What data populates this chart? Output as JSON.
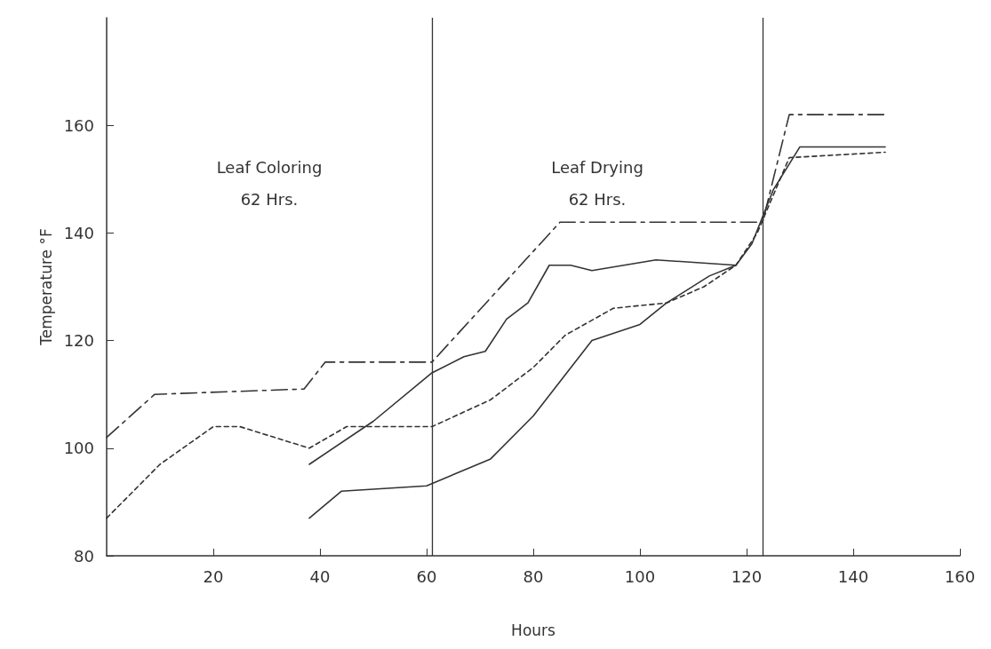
{
  "chart_data": {
    "type": "line",
    "xlabel": "Hours",
    "ylabel": "Temperature °F",
    "xlim": [
      0,
      160
    ],
    "xticks": [
      20,
      40,
      60,
      80,
      100,
      120,
      140,
      160
    ],
    "ylim": [
      80,
      180
    ],
    "yticks": [
      80,
      100,
      120,
      140,
      160
    ],
    "grid": false,
    "marker": "none",
    "ref_lines": [
      {
        "axis": "x",
        "value": 61
      },
      {
        "axis": "x",
        "value": 123
      }
    ],
    "annotations": [
      "Leaf Coloring\n62 Hrs.",
      "Leaf Drying\n62 Hrs."
    ],
    "series": [
      {
        "color": "#333333",
        "line_style": "dashed",
        "x": [
          0,
          9,
          37,
          41,
          61,
          85,
          123,
          128,
          146
        ],
        "values": [
          102,
          110,
          111,
          116,
          116,
          142,
          142,
          162,
          162
        ]
      },
      {
        "color": "#333333",
        "line_style": "dotted",
        "x": [
          0,
          10,
          20,
          25,
          38,
          45,
          61,
          72,
          80,
          86,
          95,
          105,
          112,
          118,
          122,
          128,
          146
        ],
        "values": [
          87,
          97,
          104,
          104,
          100,
          104,
          104,
          109,
          115,
          121,
          126,
          127,
          130,
          134,
          140,
          154,
          155
        ]
      },
      {
        "color": "#333333",
        "line_style": "solid",
        "x": [
          38,
          50,
          61,
          67,
          71,
          75,
          79,
          83,
          87,
          91,
          103,
          118,
          121,
          125,
          130,
          146
        ],
        "values": [
          97,
          105,
          114,
          117,
          118,
          124,
          127,
          134,
          134,
          133,
          135,
          134,
          138,
          148,
          156,
          156
        ]
      },
      {
        "color": "#333333",
        "line_style": "solid",
        "x": [
          38,
          44,
          60,
          72,
          80,
          91,
          100,
          105,
          113,
          118
        ],
        "values": [
          87,
          92,
          93,
          98,
          106,
          120,
          123,
          127,
          132,
          134
        ]
      }
    ]
  }
}
